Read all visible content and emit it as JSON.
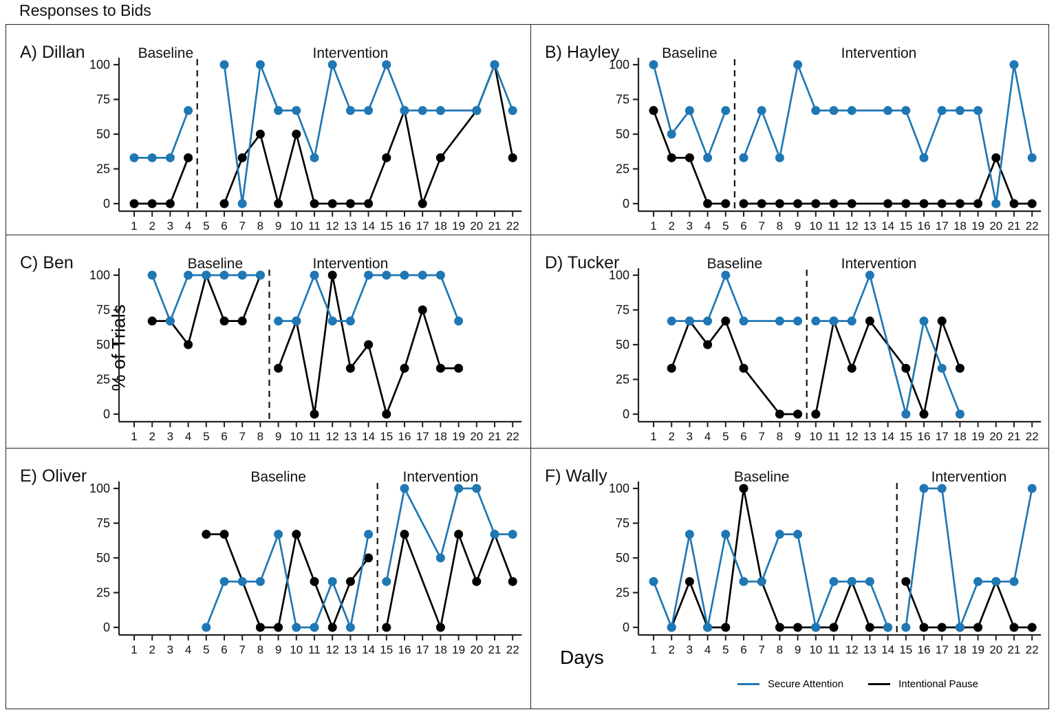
{
  "title": "Responses to Bids",
  "ylabel": "% of Trials",
  "xlabel": "Days",
  "colors": {
    "secure": "#1f77b4",
    "pause": "#000000",
    "axis": "#222222"
  },
  "legend": [
    {
      "label": "Secure Attention",
      "color": "#1f77b4"
    },
    {
      "label": "Intentional Pause",
      "color": "#000000"
    }
  ],
  "axis": {
    "yticks": [
      0,
      25,
      50,
      75,
      100
    ],
    "days": [
      1,
      2,
      3,
      4,
      5,
      6,
      7,
      8,
      9,
      10,
      11,
      12,
      13,
      14,
      15,
      16,
      17,
      18,
      19,
      20,
      21,
      22
    ],
    "ylim": [
      0,
      100
    ]
  },
  "chart_data": [
    {
      "id": "A",
      "label": "A) Dillan",
      "type": "line",
      "phase_divider_day": 4.5,
      "baseline_label_day": 2.75,
      "intervention_label_day": 13,
      "phase_labels": {
        "baseline": "Baseline",
        "intervention": "Intervention"
      },
      "series": [
        {
          "name": "Secure Attention",
          "color": "#1f77b4",
          "values": [
            33,
            33,
            33,
            67,
            null,
            100,
            0,
            100,
            67,
            67,
            33,
            100,
            67,
            67,
            100,
            67,
            67,
            67,
            null,
            67,
            100,
            67
          ]
        },
        {
          "name": "Intentional Pause",
          "color": "#000000",
          "values": [
            0,
            0,
            0,
            33,
            null,
            0,
            33,
            50,
            0,
            50,
            0,
            0,
            0,
            0,
            33,
            67,
            0,
            33,
            null,
            67,
            100,
            33
          ]
        }
      ]
    },
    {
      "id": "B",
      "label": "B) Hayley",
      "type": "line",
      "phase_divider_day": 5.5,
      "baseline_label_day": 3,
      "intervention_label_day": 13.5,
      "phase_labels": {
        "baseline": "Baseline",
        "intervention": "Intervention"
      },
      "series": [
        {
          "name": "Secure Attention",
          "color": "#1f77b4",
          "values": [
            100,
            50,
            67,
            33,
            67,
            33,
            67,
            33,
            100,
            67,
            67,
            67,
            null,
            67,
            67,
            33,
            67,
            67,
            67,
            0,
            100,
            33
          ]
        },
        {
          "name": "Intentional Pause",
          "color": "#000000",
          "values": [
            67,
            33,
            33,
            0,
            0,
            0,
            0,
            0,
            0,
            0,
            0,
            0,
            null,
            0,
            0,
            0,
            0,
            0,
            0,
            33,
            0,
            0
          ]
        }
      ]
    },
    {
      "id": "C",
      "label": "C) Ben",
      "type": "line",
      "phase_divider_day": 8.5,
      "baseline_label_day": 5.5,
      "intervention_label_day": 13,
      "phase_labels": {
        "baseline": "Baseline",
        "intervention": "Intervention"
      },
      "series": [
        {
          "name": "Secure Attention",
          "color": "#1f77b4",
          "values": [
            null,
            100,
            67,
            100,
            100,
            100,
            100,
            100,
            67,
            67,
            100,
            67,
            67,
            100,
            100,
            100,
            100,
            100,
            67,
            null,
            null,
            null
          ]
        },
        {
          "name": "Intentional Pause",
          "color": "#000000",
          "values": [
            null,
            67,
            67,
            50,
            100,
            67,
            67,
            100,
            33,
            67,
            0,
            100,
            33,
            50,
            0,
            33,
            75,
            33,
            33,
            null,
            null,
            null
          ]
        }
      ]
    },
    {
      "id": "D",
      "label": "D) Tucker",
      "type": "line",
      "phase_divider_day": 9.5,
      "baseline_label_day": 5.5,
      "intervention_label_day": 13.5,
      "phase_labels": {
        "baseline": "Baseline",
        "intervention": "Intervention"
      },
      "series": [
        {
          "name": "Secure Attention",
          "color": "#1f77b4",
          "values": [
            null,
            67,
            67,
            67,
            100,
            67,
            null,
            67,
            67,
            67,
            67,
            67,
            100,
            null,
            0,
            67,
            33,
            0,
            null,
            null,
            null,
            null
          ]
        },
        {
          "name": "Intentional Pause",
          "color": "#000000",
          "values": [
            null,
            33,
            67,
            50,
            67,
            33,
            null,
            0,
            0,
            0,
            67,
            33,
            67,
            null,
            33,
            0,
            67,
            33,
            null,
            null,
            null,
            null
          ]
        }
      ]
    },
    {
      "id": "E",
      "label": "E) Oliver",
      "type": "line",
      "phase_divider_day": 14.5,
      "baseline_label_day": 9,
      "intervention_label_day": 18,
      "phase_labels": {
        "baseline": "Baseline",
        "intervention": "Intervention"
      },
      "series": [
        {
          "name": "Secure Attention",
          "color": "#1f77b4",
          "values": [
            null,
            null,
            null,
            null,
            0,
            33,
            33,
            33,
            67,
            0,
            0,
            33,
            0,
            67,
            33,
            100,
            null,
            50,
            100,
            100,
            67,
            67
          ]
        },
        {
          "name": "Intentional Pause",
          "color": "#000000",
          "values": [
            null,
            null,
            null,
            null,
            67,
            67,
            null,
            0,
            0,
            67,
            33,
            0,
            33,
            50,
            0,
            67,
            null,
            0,
            67,
            33,
            67,
            33
          ]
        }
      ]
    },
    {
      "id": "F",
      "label": "F) Wally",
      "type": "line",
      "phase_divider_day": 14.5,
      "baseline_label_day": 7,
      "intervention_label_day": 18.5,
      "phase_labels": {
        "baseline": "Baseline",
        "intervention": "Intervention"
      },
      "series": [
        {
          "name": "Secure Attention",
          "color": "#1f77b4",
          "values": [
            33,
            0,
            67,
            0,
            67,
            33,
            33,
            67,
            67,
            0,
            33,
            33,
            33,
            0,
            0,
            100,
            100,
            0,
            33,
            33,
            33,
            100
          ]
        },
        {
          "name": "Intentional Pause",
          "color": "#000000",
          "values": [
            null,
            0,
            33,
            0,
            0,
            100,
            33,
            0,
            0,
            0,
            0,
            33,
            0,
            0,
            33,
            0,
            0,
            0,
            0,
            33,
            0,
            0
          ]
        }
      ]
    }
  ]
}
